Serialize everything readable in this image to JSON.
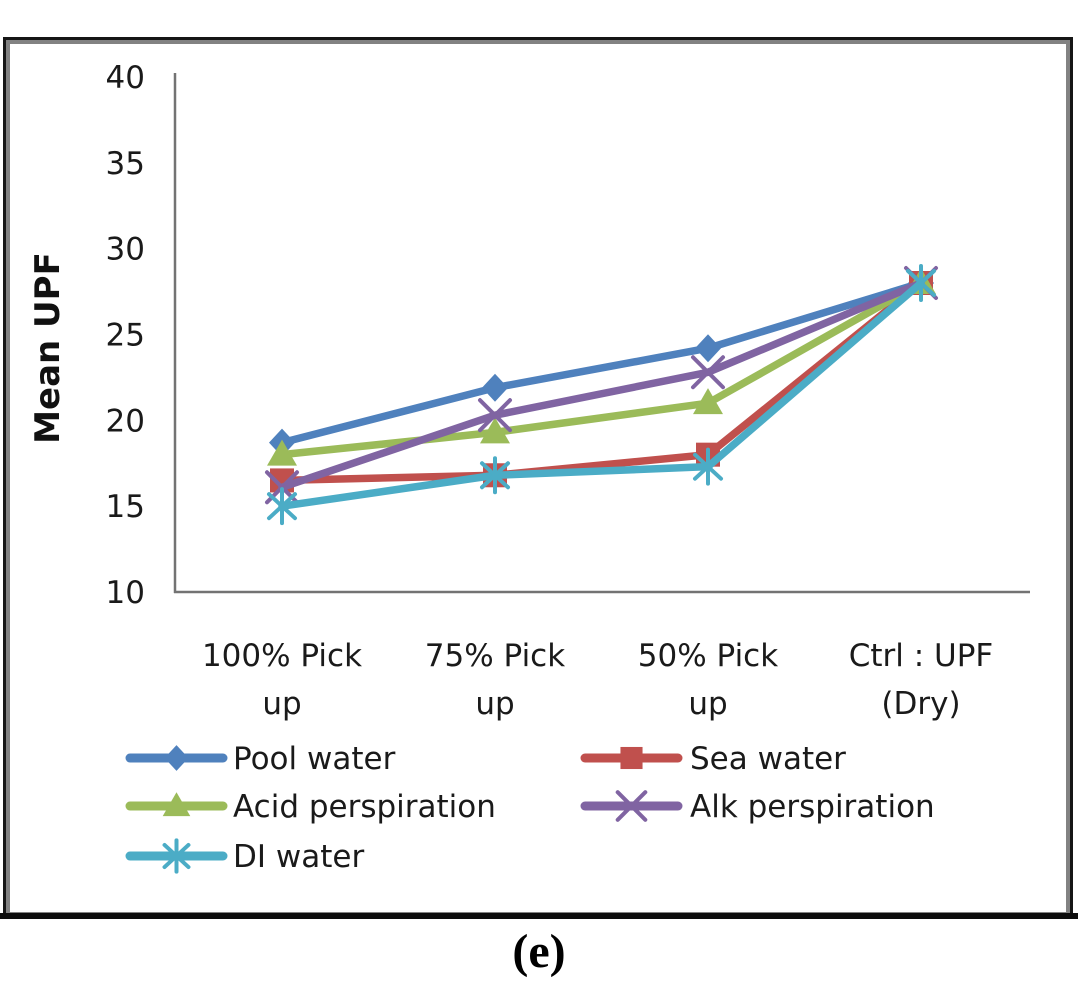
{
  "figure": {
    "caption": "(e)"
  },
  "chart_data": {
    "type": "line",
    "title": "",
    "xlabel": "",
    "ylabel": "Mean UPF",
    "categories": [
      "100% Pick\nup",
      "75% Pick\nup",
      "50% Pick\nup",
      "Ctrl : UPF\n(Dry)"
    ],
    "series": [
      {
        "name": "Pool water",
        "color": "#4F81BD",
        "marker": "diamond",
        "values": [
          18.7,
          21.9,
          24.2,
          28
        ]
      },
      {
        "name": "Sea water",
        "color": "#C0504D",
        "marker": "square",
        "values": [
          16.5,
          16.8,
          18.0,
          28
        ]
      },
      {
        "name": "Acid perspiration",
        "color": "#9BBB59",
        "marker": "triangle",
        "values": [
          18.0,
          19.3,
          21.0,
          28
        ]
      },
      {
        "name": "Alk perspiration",
        "color": "#8064A2",
        "marker": "x",
        "values": [
          16.1,
          20.3,
          22.8,
          28
        ]
      },
      {
        "name": "DI water",
        "color": "#4BACC6",
        "marker": "asterisk",
        "values": [
          15.0,
          16.8,
          17.3,
          28
        ]
      }
    ],
    "ylim": [
      10,
      40
    ],
    "yticks": [
      40,
      35,
      30,
      25,
      20,
      15,
      10
    ],
    "grid": false,
    "legend_position": "bottom-left-two-columns",
    "axis_color": "#737373",
    "text_color": "#1a1a1a"
  }
}
